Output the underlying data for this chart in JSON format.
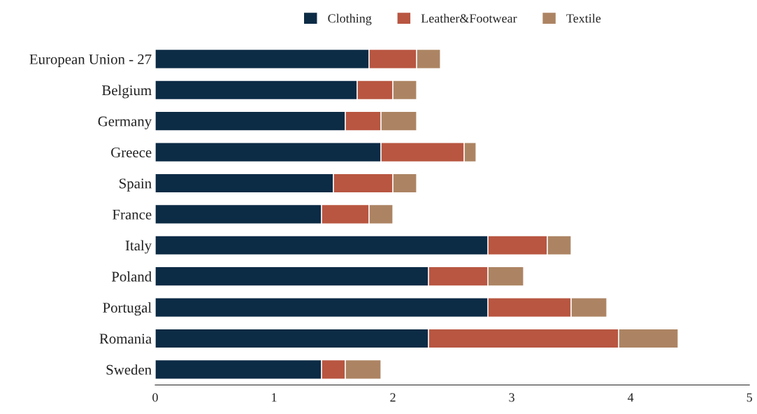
{
  "chart_data": {
    "type": "bar",
    "orientation": "horizontal",
    "stacked": true,
    "categories": [
      "European Union - 27",
      "Belgium",
      "Germany",
      "Greece",
      "Spain",
      "France",
      "Italy",
      "Poland",
      "Portugal",
      "Romania",
      "Sweden"
    ],
    "series": [
      {
        "name": "Clothing",
        "color": "#0c2b45",
        "values": [
          1.8,
          1.7,
          1.6,
          1.9,
          1.5,
          1.4,
          2.8,
          2.3,
          2.8,
          2.3,
          1.4
        ]
      },
      {
        "name": "Leather&Footwear",
        "color": "#b85641",
        "values": [
          0.4,
          0.3,
          0.3,
          0.7,
          0.5,
          0.4,
          0.5,
          0.5,
          0.7,
          1.6,
          0.2
        ]
      },
      {
        "name": "Textile",
        "color": "#ac8463",
        "values": [
          0.2,
          0.2,
          0.3,
          0.1,
          0.2,
          0.2,
          0.2,
          0.3,
          0.3,
          0.5,
          0.3
        ]
      }
    ],
    "xlim": [
      0,
      5
    ],
    "xticks": [
      0,
      1,
      2,
      3,
      4,
      5
    ],
    "grid": false,
    "legend": "top"
  }
}
